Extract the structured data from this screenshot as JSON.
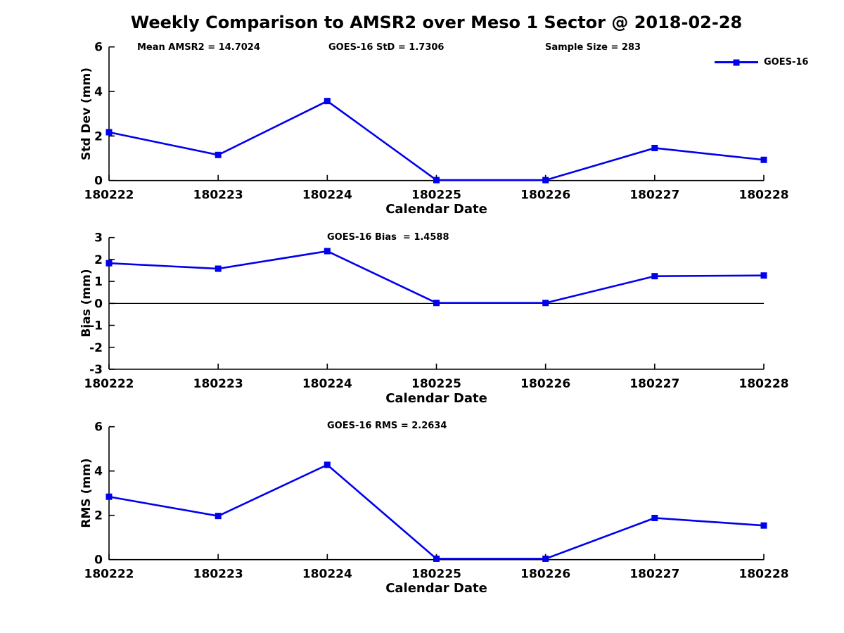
{
  "title": "Weekly Comparison to AMSR2 over Meso 1 Sector @ 2018-02-28",
  "annotations": {
    "mean_amsr2": "Mean AMSR2 = 14.7024",
    "goes16_std": "GOES-16 StD = 1.7306",
    "sample_size": "Sample Size = 283",
    "goes16_bias": "GOES-16 Bias  = 1.4588",
    "goes16_rms": "GOES-16 RMS = 2.2634"
  },
  "legend": {
    "label": "GOES-16",
    "position": "top-right",
    "marker": "filled-square"
  },
  "colors": {
    "line": "#0000ee",
    "axis": "#000000",
    "background": "#ffffff",
    "text": "#000000"
  },
  "chart_data": [
    {
      "type": "line",
      "ylabel": "Std Dev (mm)",
      "xlabel": "Calendar Date",
      "categories": [
        "180222",
        "180223",
        "180224",
        "180225",
        "180226",
        "180227",
        "180228"
      ],
      "series": [
        {
          "name": "GOES-16",
          "values": [
            2.17,
            1.15,
            3.57,
            0.02,
            0.02,
            1.46,
            0.93
          ]
        }
      ],
      "ylim": [
        0,
        6
      ],
      "yticks": [
        0,
        2,
        4,
        6
      ],
      "grid": false,
      "zero_line": false,
      "legend_position": "top-right"
    },
    {
      "type": "line",
      "ylabel": "Bias (mm)",
      "xlabel": "Calendar Date",
      "categories": [
        "180222",
        "180223",
        "180224",
        "180225",
        "180226",
        "180227",
        "180228"
      ],
      "series": [
        {
          "name": "GOES-16",
          "values": [
            1.83,
            1.58,
            2.38,
            0.02,
            0.02,
            1.24,
            1.27
          ]
        }
      ],
      "ylim": [
        -3,
        3
      ],
      "yticks": [
        -3,
        -2,
        -1,
        0,
        1,
        2,
        3
      ],
      "grid": false,
      "zero_line": true,
      "legend_position": "none"
    },
    {
      "type": "line",
      "ylabel": "RMS (mm)",
      "xlabel": "Calendar Date",
      "categories": [
        "180222",
        "180223",
        "180224",
        "180225",
        "180226",
        "180227",
        "180228"
      ],
      "series": [
        {
          "name": "GOES-16",
          "values": [
            2.84,
            1.97,
            4.28,
            0.04,
            0.04,
            1.88,
            1.54
          ]
        }
      ],
      "ylim": [
        0,
        6
      ],
      "yticks": [
        0,
        2,
        4,
        6
      ],
      "grid": false,
      "zero_line": false,
      "legend_position": "none"
    }
  ]
}
